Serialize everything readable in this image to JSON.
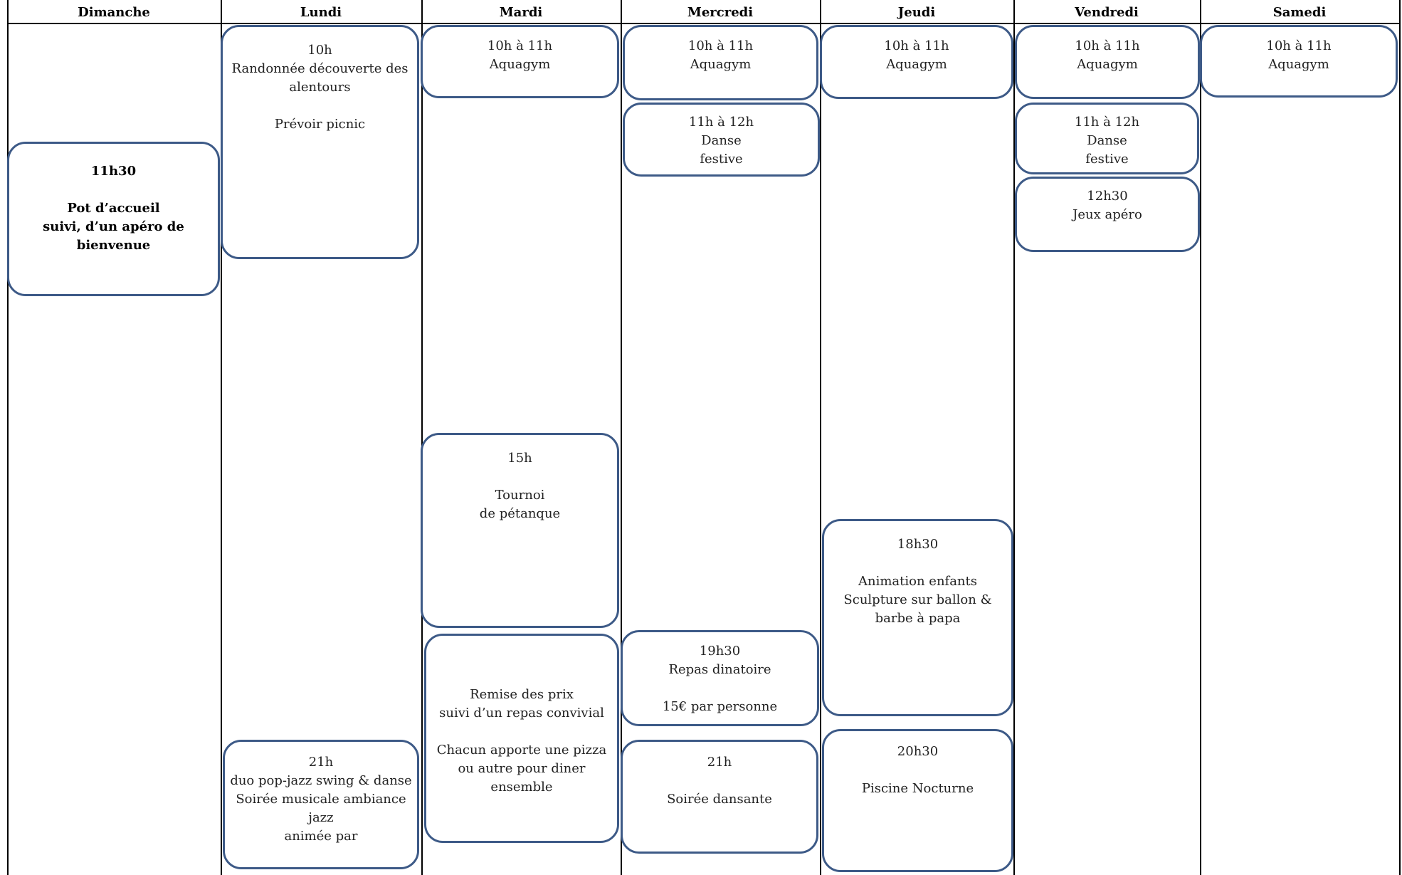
{
  "days": [
    {
      "name": "Dimanche",
      "events": [
        {
          "blocks": [
            [
              "11h30"
            ],
            [
              "Pot d’accueil",
              "suivi, d’un apéro de bienvenue"
            ]
          ]
        }
      ]
    },
    {
      "name": "Lundi",
      "events": [
        {
          "blocks": [
            [
              "10h",
              "Randonnée découverte des",
              "alentours"
            ],
            [
              "Prévoir picnic"
            ]
          ]
        },
        {
          "blocks": [
            [
              "21h",
              "duo pop-jazz swing & danse",
              "Soirée musicale ambiance",
              "jazz",
              "animée par"
            ]
          ]
        }
      ]
    },
    {
      "name": "Mardi",
      "events": [
        {
          "blocks": [
            [
              "10h à 11h",
              "Aquagym"
            ]
          ]
        },
        {
          "blocks": [
            [
              "15h"
            ],
            [
              "Tournoi",
              "de pétanque"
            ]
          ]
        },
        {
          "blocks": [
            [
              "Remise des prix",
              "suivi d’un repas convivial"
            ],
            [
              "Chacun apporte une pizza",
              "ou autre pour diner",
              "ensemble"
            ]
          ]
        }
      ]
    },
    {
      "name": "Mercredi",
      "events": [
        {
          "blocks": [
            [
              "10h à 11h",
              "Aquagym"
            ]
          ]
        },
        {
          "blocks": [
            [
              "11h à 12h",
              "Danse",
              "festive"
            ]
          ]
        },
        {
          "blocks": [
            [
              "19h30",
              "Repas dinatoire"
            ],
            [
              "15€ par personne"
            ]
          ]
        },
        {
          "blocks": [
            [
              "21h"
            ],
            [
              "Soirée dansante"
            ]
          ]
        }
      ]
    },
    {
      "name": "Jeudi",
      "events": [
        {
          "blocks": [
            [
              "10h à 11h",
              "Aquagym"
            ]
          ]
        },
        {
          "blocks": [
            [
              "18h30"
            ],
            [
              "Animation enfants",
              "Sculpture sur ballon &",
              "barbe à papa"
            ]
          ]
        },
        {
          "blocks": [
            [
              "20h30"
            ],
            [
              "Piscine Nocturne"
            ]
          ]
        }
      ]
    },
    {
      "name": "Vendredi",
      "events": [
        {
          "blocks": [
            [
              "10h à 11h",
              "Aquagym"
            ]
          ]
        },
        {
          "blocks": [
            [
              "11h à 12h",
              "Danse",
              "festive"
            ]
          ]
        },
        {
          "blocks": [
            [
              "12h30",
              "Jeux apéro"
            ]
          ]
        }
      ]
    },
    {
      "name": "Samedi",
      "events": [
        {
          "blocks": [
            [
              "10h à 11h",
              "Aquagym"
            ]
          ]
        }
      ]
    }
  ]
}
